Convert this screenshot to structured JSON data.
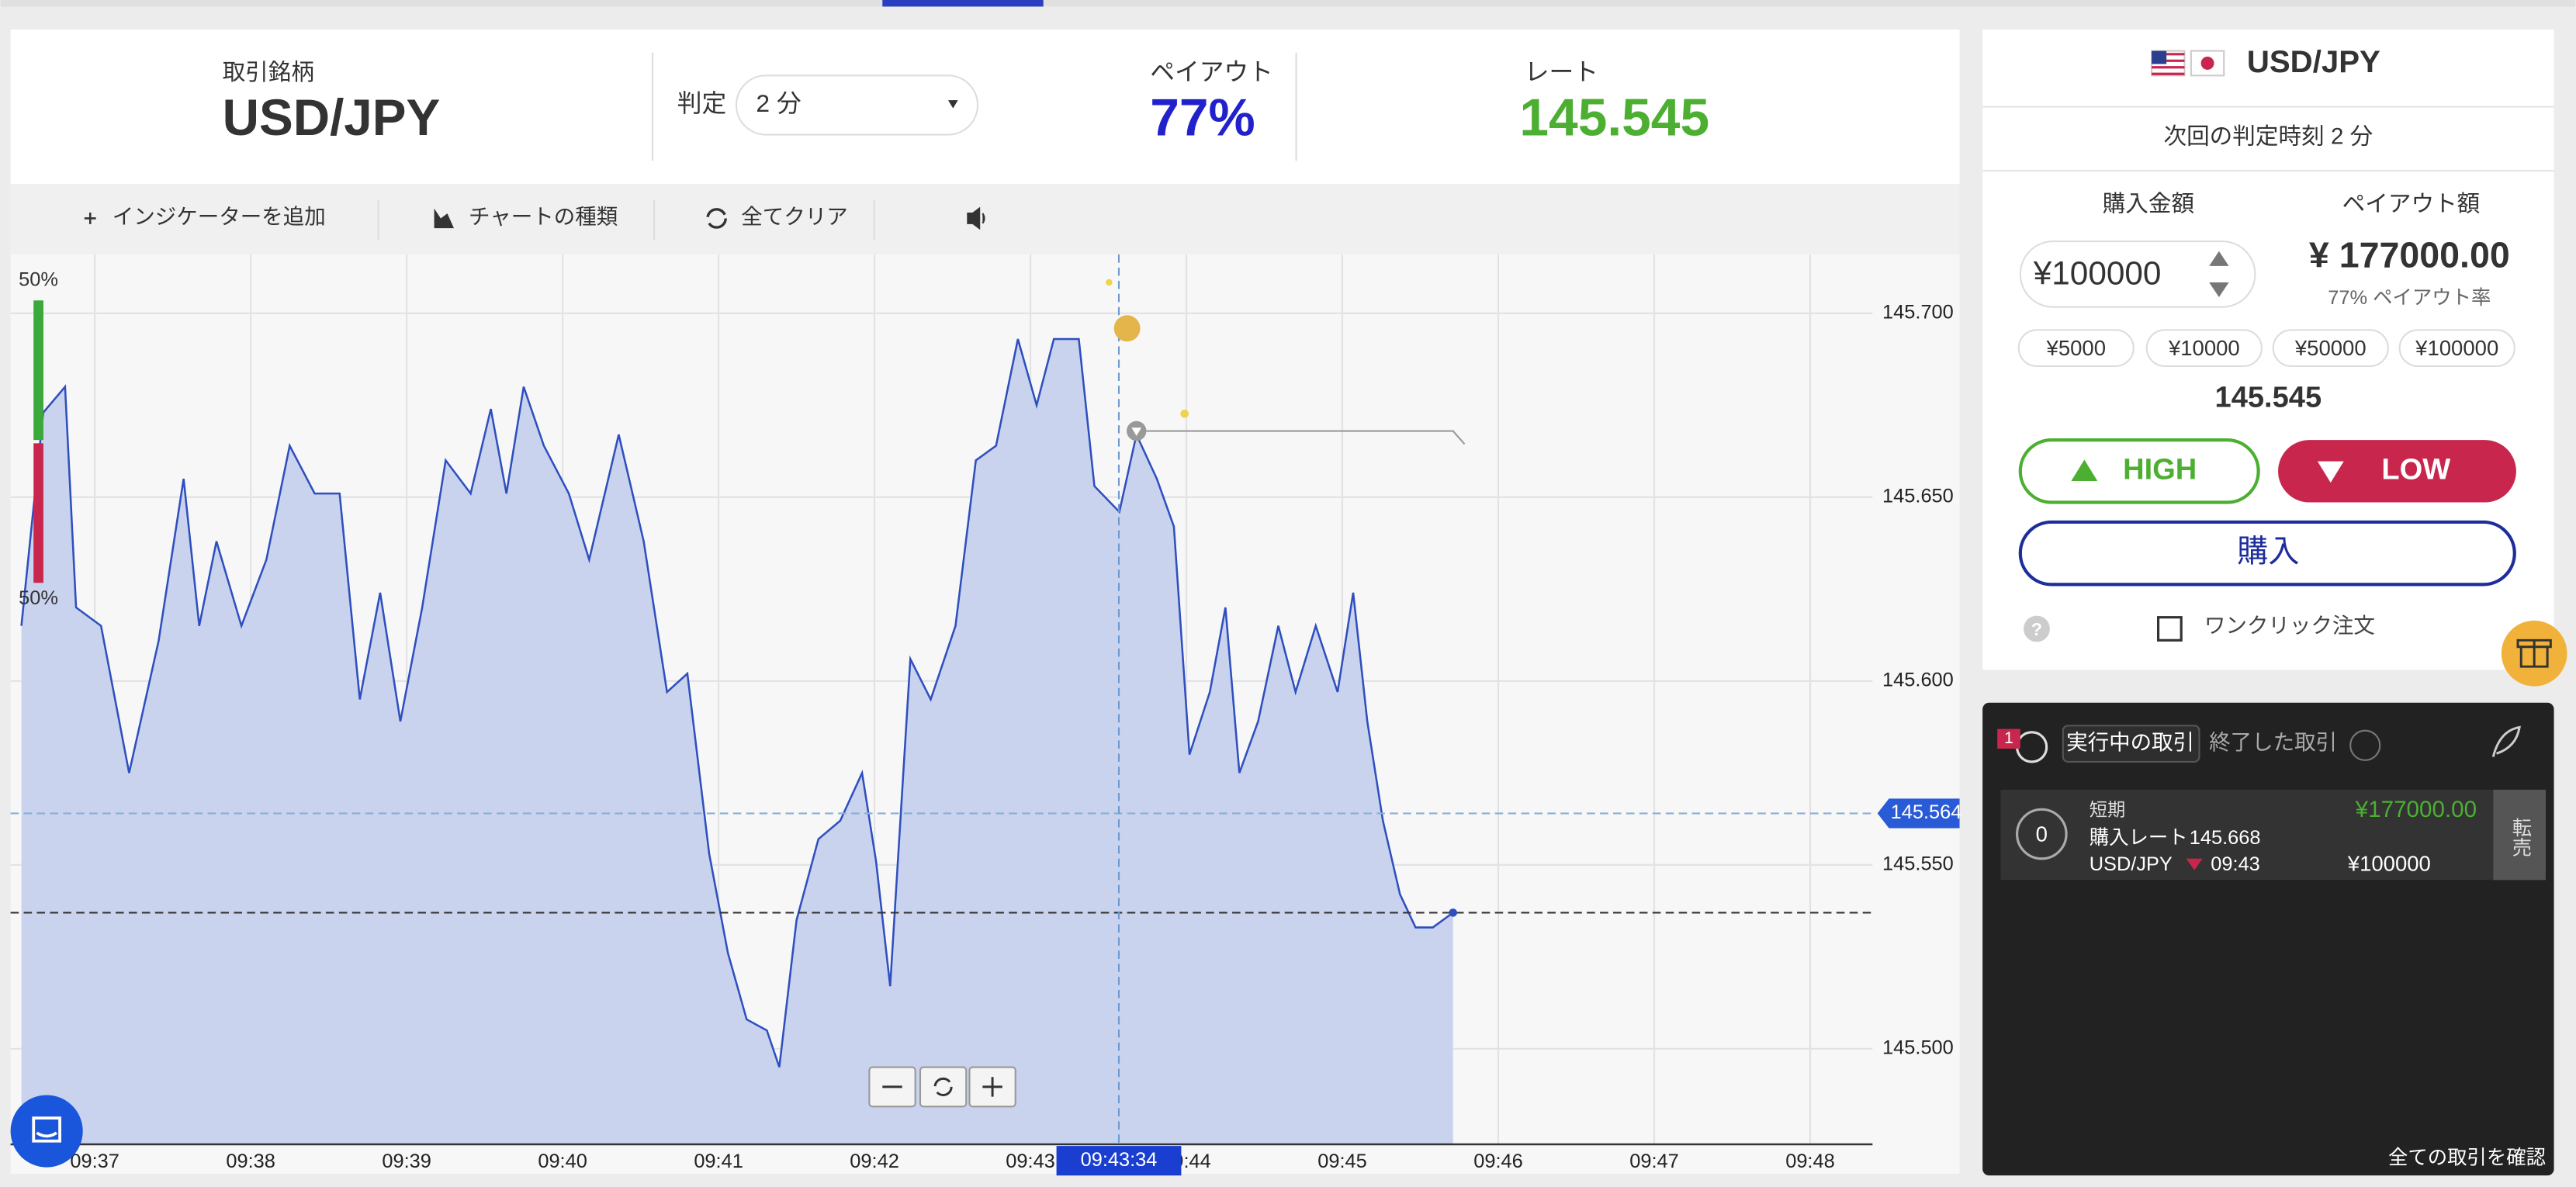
{
  "header": {
    "symbol_label": "取引銘柄",
    "symbol": "USD/JPY",
    "expiry_label": "判定",
    "expiry": "2 分",
    "payout_label": "ペイアウト",
    "payout": "77%",
    "rate_label": "レート",
    "rate": "145.545"
  },
  "toolbar": {
    "add_indicator": "インジケーターを追加",
    "chart_type": "チャートの種類",
    "clear_all": "全てクリア"
  },
  "sentiment": {
    "high": "50%",
    "low": "50%"
  },
  "chart_data": {
    "type": "line",
    "x": [
      576.53,
      576.67,
      576.81,
      576.88,
      577.04,
      577.22,
      577.41,
      577.57,
      577.67,
      577.78,
      577.94,
      578.1,
      578.25,
      578.41,
      578.57,
      578.7,
      578.83,
      578.96,
      579.1,
      579.25,
      579.41,
      579.54,
      579.64,
      579.75,
      579.88,
      580.04,
      580.17,
      580.36,
      580.52,
      580.67,
      580.8,
      580.94,
      581.06,
      581.18,
      581.31,
      581.39,
      581.5,
      581.64,
      581.78,
      581.92,
      582.01,
      582.1,
      582.23,
      582.36,
      582.52,
      582.65,
      582.78,
      582.92,
      583.04,
      583.15,
      583.31,
      583.41,
      583.57,
      583.68,
      583.81,
      583.92,
      584.02,
      584.15,
      584.25,
      584.34,
      584.46,
      584.59,
      584.7,
      584.83,
      584.97,
      585.07,
      585.16,
      585.26,
      585.37,
      585.47,
      585.58,
      585.71
    ],
    "values": [
      145.615,
      145.673,
      145.68,
      145.62,
      145.615,
      145.575,
      145.611,
      145.655,
      145.615,
      145.638,
      145.615,
      145.633,
      145.664,
      145.651,
      145.651,
      145.595,
      145.624,
      145.589,
      145.62,
      145.66,
      145.651,
      145.674,
      145.651,
      145.68,
      145.664,
      145.651,
      145.633,
      145.667,
      145.638,
      145.597,
      145.602,
      145.553,
      145.526,
      145.508,
      145.505,
      145.495,
      145.535,
      145.557,
      145.562,
      145.575,
      145.551,
      145.517,
      145.606,
      145.595,
      145.615,
      145.66,
      145.664,
      145.693,
      145.675,
      145.693,
      145.693,
      145.653,
      145.646,
      145.667,
      145.655,
      145.642,
      145.58,
      145.597,
      145.62,
      145.575,
      145.589,
      145.615,
      145.597,
      145.615,
      145.597,
      145.624,
      145.589,
      145.562,
      145.542,
      145.533,
      145.533,
      145.537
    ],
    "color": "#2f4fbf",
    "fill": "#c9d3ee",
    "xlim": [
      576.46,
      588.4
    ],
    "xticks": [
      {
        "value": 577,
        "label": "09:37"
      },
      {
        "value": 578,
        "label": "09:38"
      },
      {
        "value": 579,
        "label": "09:39"
      },
      {
        "value": 580,
        "label": "09:40"
      },
      {
        "value": 581,
        "label": "09:41"
      },
      {
        "value": 582,
        "label": "09:42"
      },
      {
        "value": 583,
        "label": "09:43"
      },
      {
        "value": 584,
        "label": "09:44"
      },
      {
        "value": 585,
        "label": "09:45"
      },
      {
        "value": 586,
        "label": "09:46"
      },
      {
        "value": 587,
        "label": "09:47"
      },
      {
        "value": 588,
        "label": "09:48"
      }
    ],
    "ylim": [
      145.474,
      145.716
    ],
    "yticks": [
      {
        "value": 145.5,
        "label": "145.500"
      },
      {
        "value": 145.55,
        "label": "145.550"
      },
      {
        "value": 145.6,
        "label": "145.600"
      },
      {
        "value": 145.65,
        "label": "145.650"
      },
      {
        "value": 145.7,
        "label": "145.700"
      }
    ],
    "grid": true,
    "price_line": 145.564,
    "crosshair": {
      "value": 583.567,
      "label": "09:43:34"
    },
    "entry": {
      "x": 583.68,
      "y": 145.668
    }
  },
  "order_panel": {
    "symbol": "USD/JPY",
    "next_expiry": "次回の判定時刻 2 分",
    "amount_label": "購入金額",
    "payout_label": "ペイアウト額",
    "amount": "¥100000",
    "payout_amount": "¥ 177000.00",
    "payout_rate": "77% ペイアウト率",
    "presets": [
      "¥5000",
      "¥10000",
      "¥50000",
      "¥100000"
    ],
    "rate": "145.545",
    "high": "HIGH",
    "low": "LOW",
    "buy": "購入",
    "help": "?",
    "one_click": "ワンクリック注文"
  },
  "trades_panel": {
    "badge": "1",
    "active_tab": "実行中の取引",
    "closed_tab": "終了した取引",
    "trades": [
      {
        "count": "0",
        "term": "短期",
        "payout": "¥177000.00",
        "rate_label": "購入レート",
        "rate": "145.668",
        "symbol": "USD/JPY",
        "time": "09:43",
        "amount": "¥100000",
        "resell": "転売"
      }
    ],
    "view_all": "全ての取引を確認"
  }
}
